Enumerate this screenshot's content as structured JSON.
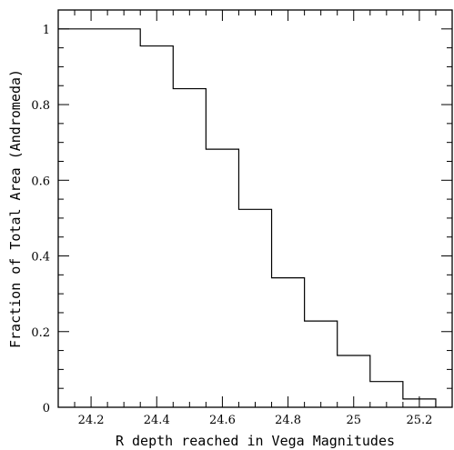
{
  "chart_data": {
    "type": "line",
    "step": "post",
    "title": "",
    "xlabel": "R depth reached in Vega Magnitudes",
    "ylabel": "Fraction of Total Area (Andromeda)",
    "xlim": [
      24.1,
      25.3
    ],
    "ylim": [
      0,
      1.05
    ],
    "x_ticks": [
      24.2,
      24.4,
      24.6,
      24.8,
      25,
      25.2
    ],
    "x_tick_labels": [
      "24.2",
      "24.4",
      "24.6",
      "24.8",
      "25",
      "25.2"
    ],
    "x_minor_step": 0.05,
    "y_ticks": [
      0,
      0.2,
      0.4,
      0.6,
      0.8,
      1
    ],
    "y_tick_labels": [
      "0",
      "0.2",
      "0.4",
      "0.6",
      "0.8",
      "1"
    ],
    "y_minor_step": 0.05,
    "grid": false,
    "legend": "none",
    "line_color": "#000000",
    "series": [
      {
        "x": [
          24.1,
          24.35,
          24.45,
          24.55,
          24.65,
          24.75,
          24.85,
          24.95,
          25.05,
          25.15,
          25.2,
          25.25
        ],
        "values": [
          1.0,
          0.955,
          0.842,
          0.682,
          0.523,
          0.342,
          0.228,
          0.137,
          0.068,
          0.022,
          0.022,
          0.0
        ]
      }
    ]
  }
}
